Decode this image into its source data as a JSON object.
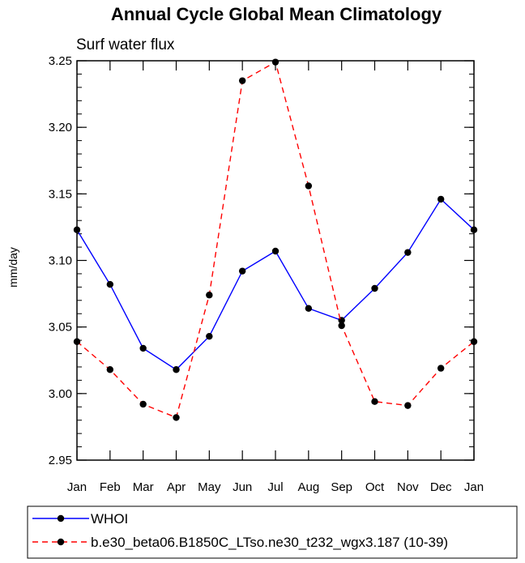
{
  "chart_data": {
    "type": "line",
    "title": "Annual Cycle Global Mean Climatology",
    "subtitle": "Surf water flux",
    "xlabel": "",
    "ylabel": "mm/day",
    "categories": [
      "Jan",
      "Feb",
      "Mar",
      "Apr",
      "May",
      "Jun",
      "Jul",
      "Aug",
      "Sep",
      "Oct",
      "Nov",
      "Dec",
      "Jan"
    ],
    "ylim": [
      2.95,
      3.25
    ],
    "yticks": [
      "2.95",
      "3.00",
      "3.05",
      "3.10",
      "3.15",
      "3.20",
      "3.25"
    ],
    "grid": false,
    "legend_position": "bottom",
    "series": [
      {
        "name": "WHOI",
        "color": "#0000ff",
        "line_style": "solid",
        "marker": "filled-circle",
        "values": [
          3.123,
          3.082,
          3.034,
          3.018,
          3.043,
          3.092,
          3.107,
          3.064,
          3.055,
          3.079,
          3.106,
          3.146,
          3.123
        ]
      },
      {
        "name": "b.e30_beta06.B1850C_LTso.ne30_t232_wgx3.187 (10-39)",
        "color": "#ff0000",
        "line_style": "dashed",
        "marker": "filled-circle",
        "values": [
          3.039,
          3.018,
          2.992,
          2.982,
          3.074,
          3.235,
          3.249,
          3.156,
          3.051,
          2.994,
          2.991,
          3.019,
          3.039
        ]
      }
    ]
  }
}
